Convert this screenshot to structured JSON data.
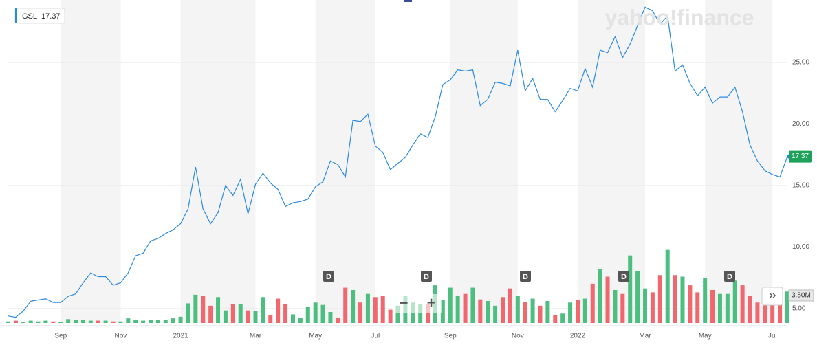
{
  "brand": "yahoo!finance",
  "controls": {
    "zoom_out": "−",
    "zoom_in": "+",
    "scroll": "»"
  },
  "chart_data": {
    "type": "line",
    "dividend_marker": "D",
    "categories": [
      null,
      null,
      null,
      null,
      null,
      null,
      null,
      "Sep",
      null,
      null,
      null,
      null,
      null,
      null,
      null,
      "Nov",
      null,
      null,
      null,
      null,
      null,
      null,
      null,
      "2021",
      null,
      null,
      null,
      null,
      null,
      null,
      null,
      null,
      null,
      "Mar",
      null,
      null,
      null,
      null,
      null,
      null,
      null,
      "May",
      null,
      null,
      null,
      null,
      null,
      null,
      null,
      "Jul",
      null,
      null,
      null,
      null,
      null,
      null,
      null,
      null,
      null,
      "Sep",
      null,
      null,
      null,
      null,
      null,
      null,
      null,
      null,
      "Nov",
      null,
      null,
      null,
      null,
      null,
      null,
      null,
      "2022",
      null,
      null,
      null,
      null,
      null,
      null,
      null,
      null,
      "Mar",
      null,
      null,
      null,
      null,
      null,
      null,
      null,
      "May",
      null,
      null,
      null,
      null,
      null,
      null,
      null,
      null,
      "Jul",
      null,
      null
    ],
    "series": [
      {
        "name": "GSL",
        "color": "#2a8ae0",
        "values": [
          4.4,
          4.3,
          4.8,
          5.6,
          5.7,
          5.8,
          5.5,
          5.5,
          6.0,
          6.2,
          7.1,
          7.9,
          7.6,
          7.6,
          6.9,
          7.1,
          7.9,
          9.3,
          9.5,
          10.5,
          10.7,
          11.1,
          11.4,
          11.9,
          13.1,
          16.5,
          13.1,
          11.9,
          12.8,
          15.0,
          14.2,
          15.5,
          12.7,
          15.1,
          16.0,
          15.2,
          14.7,
          13.3,
          13.6,
          13.7,
          13.9,
          14.9,
          15.3,
          17.0,
          16.7,
          15.7,
          20.3,
          20.2,
          20.8,
          18.2,
          17.7,
          16.3,
          16.8,
          17.3,
          18.3,
          19.2,
          18.9,
          20.6,
          23.2,
          23.6,
          24.4,
          24.3,
          24.4,
          21.5,
          22.0,
          23.4,
          23.3,
          23.1,
          26.0,
          22.7,
          23.7,
          22.0,
          22.0,
          21.0,
          21.9,
          22.9,
          22.7,
          24.5,
          23.0,
          26.0,
          25.8,
          27.1,
          25.4,
          26.5,
          28.0,
          29.5,
          29.2,
          28.1,
          28.8,
          24.3,
          24.8,
          23.3,
          22.3,
          23.0,
          21.7,
          22.2,
          22.2,
          23.0,
          21.0,
          18.3,
          17.0,
          16.2,
          15.9,
          15.7,
          17.37
        ]
      },
      {
        "name": "Volume",
        "axis": "y2",
        "up_color": "#4cbf80",
        "down_color": "#f0676e",
        "values": [
          0.2,
          0.3,
          0.1,
          0.3,
          0.2,
          0.3,
          0.2,
          0.1,
          0.5,
          0.4,
          0.4,
          0.3,
          0.3,
          0.3,
          0.2,
          0.2,
          0.6,
          0.4,
          0.3,
          0.4,
          0.4,
          0.4,
          0.6,
          0.8,
          2.5,
          3.6,
          3.5,
          2.2,
          3.3,
          1.6,
          2.4,
          2.4,
          1.6,
          1.5,
          3.3,
          1.0,
          3.1,
          2.4,
          1.1,
          0.7,
          2.1,
          2.6,
          2.3,
          1.4,
          0.7,
          4.5,
          4.2,
          2.6,
          3.7,
          3.3,
          3.5,
          1.7,
          2.2,
          3.5,
          2.6,
          2.4,
          2.4,
          4.8,
          2.9,
          4.5,
          3.5,
          3.7,
          4.5,
          3.0,
          2.8,
          2.2,
          3.3,
          4.4,
          3.5,
          2.7,
          3.1,
          2.2,
          2.8,
          1.0,
          1.2,
          2.6,
          2.9,
          3.1,
          5.0,
          6.9,
          5.9,
          4.2,
          3.7,
          8.6,
          6.6,
          4.4,
          3.9,
          6.1,
          9.3,
          6.1,
          5.9,
          4.8,
          3.9,
          5.7,
          4.2,
          3.7,
          3.7,
          5.4,
          4.8,
          3.5,
          2.6,
          3.1,
          3.5,
          3.3,
          4.0
        ]
      }
    ],
    "ylim": [
      3.83,
      30.08
    ],
    "yticks": [
      {
        "value": 5,
        "label": "5.00"
      },
      {
        "value": 10,
        "label": "10.00"
      },
      {
        "value": 15,
        "label": "15.00"
      },
      {
        "value": 20,
        "label": "20.00"
      },
      {
        "value": 25,
        "label": "25.00"
      }
    ],
    "y2lim": [
      0,
      41.1
    ],
    "y2ticks": [
      {
        "value": 3.5,
        "label": "3.50M"
      }
    ],
    "grid": true
  }
}
